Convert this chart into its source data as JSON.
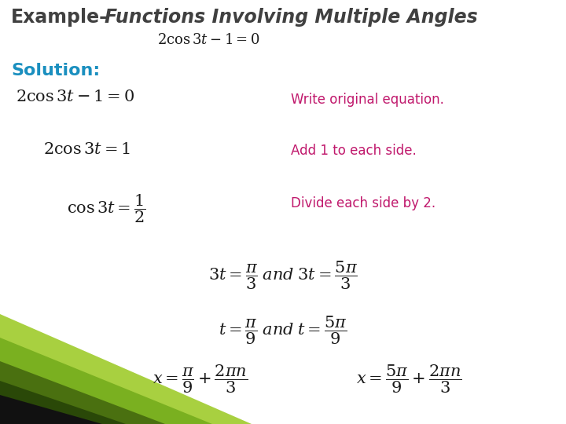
{
  "bg_color": "#ffffff",
  "title_color": "#404040",
  "solution_color": "#1a8fbf",
  "annotation_color": "#c0186c",
  "math_color": "#1a1a1a",
  "green_light": "#a8d040",
  "green_mid": "#7ab020",
  "green_dark": "#4a7010",
  "green_darkest": "#2a4808",
  "black_strip": "#111111",
  "title_text_regular": "Example–",
  "title_text_italic": "Functions Involving Multiple Angles",
  "subtitle_eq": "$2\\cos 3t - 1 = 0$",
  "solution_label": "Solution:",
  "row1_eq": "$2\\cos 3t - 1 = 0$",
  "row1_ann": "Write original equation.",
  "row2_eq": "$2\\cos 3t = 1$",
  "row2_ann": "Add 1 to each side.",
  "row3_eq": "$\\cos 3t = \\dfrac{1}{2}$",
  "row3_ann": "Divide each side by 2.",
  "row4_eq": "$3t = \\dfrac{\\pi}{3}\\; \\mathit{and}\\; 3t = \\dfrac{5\\pi}{3}$",
  "row5_eq": "$t = \\dfrac{\\pi}{9}\\; \\mathit{and}\\; t = \\dfrac{5\\pi}{9}$",
  "row6a_eq": "$x = \\dfrac{\\pi}{9} + \\dfrac{2\\pi n}{3}$",
  "row6b_eq": "$x = \\dfrac{5\\pi}{9} + \\dfrac{2\\pi n}{3}$"
}
